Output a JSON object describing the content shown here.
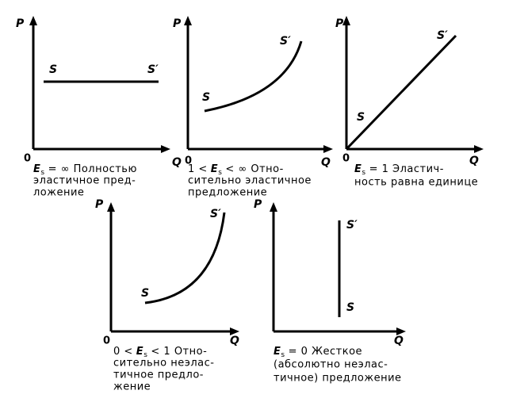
{
  "panels": [
    {
      "y_label": "P",
      "x_label": "Q",
      "origin": "0",
      "curve_labels": [
        "S",
        "S′"
      ],
      "caption": {
        "symbol": "E",
        "subscript": "s",
        "lines": [
          "= ∞  Полностью",
          "эластичное пред-",
          "ложение"
        ]
      }
    },
    {
      "y_label": "P",
      "x_label": "Q",
      "origin": "0",
      "curve_labels": [
        "S",
        "S′"
      ],
      "caption": {
        "prefix": "1 <",
        "symbol": "E",
        "subscript": "s",
        "lines": [
          "< ∞  Отно-",
          "сительно эластичное",
          "предложение"
        ]
      }
    },
    {
      "y_label": "P",
      "x_label": "Q",
      "origin": "0",
      "curve_labels": [
        "S",
        "S′"
      ],
      "caption": {
        "symbol": "E",
        "subscript": "s",
        "lines": [
          "= 1  Эластич-",
          "ность равна единице"
        ]
      }
    },
    {
      "y_label": "P",
      "x_label": "Q",
      "origin": "0",
      "curve_labels": [
        "S",
        "S′"
      ],
      "caption": {
        "prefix": "0 <",
        "symbol": "E",
        "subscript": "s",
        "lines": [
          "< 1  Отно-",
          "сительно неэлас-",
          "тичное предло-",
          "жение"
        ]
      }
    },
    {
      "y_label": "P",
      "x_label": "Q",
      "curve_labels": [
        "S",
        "S′"
      ],
      "caption": {
        "symbol": "E",
        "subscript": "s",
        "lines": [
          "= 0  Жесткое",
          "(абсолютно неэлас-",
          "тичное) предложение"
        ]
      }
    }
  ]
}
